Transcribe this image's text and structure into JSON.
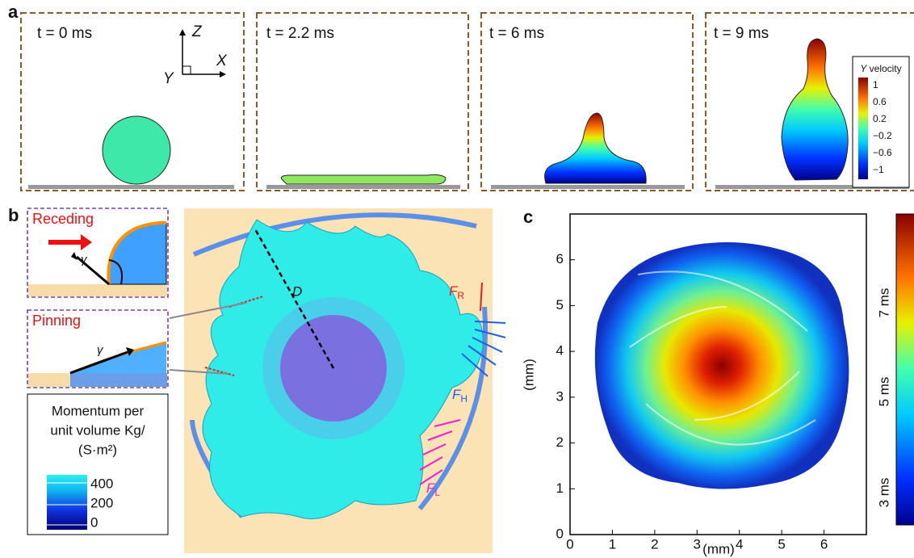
{
  "panel_a": {
    "label": "a",
    "frames": [
      "t = 0 ms",
      "t = 2.2 ms",
      "t = 6 ms",
      "t = 9 ms"
    ],
    "axes": {
      "z": "Z",
      "x": "X",
      "y": "Y"
    },
    "colorbar": {
      "title_symbol": "Y",
      "title_rest": "velocity",
      "ticks": [
        "1",
        "0.6",
        "0.2",
        "−0.2",
        "−0.6",
        "−1"
      ]
    }
  },
  "panel_b": {
    "label": "b",
    "insets": [
      {
        "title": "Receding",
        "angle": "γ"
      },
      {
        "title": "Pinning",
        "angle": "γ"
      }
    ],
    "legend": {
      "title_lines": [
        "Momentum per",
        "unit volume Kg/",
        "(S·m²)"
      ],
      "ticks": [
        "400",
        "200",
        "0"
      ]
    },
    "diameter": "D",
    "forces": [
      {
        "symbol": "F",
        "subscript": "R"
      },
      {
        "symbol": "F",
        "subscript": "H"
      },
      {
        "symbol": "F",
        "subscript": "L"
      }
    ]
  },
  "panel_c": {
    "label": "c",
    "xlabel": "(mm)",
    "ylabel": "(mm)",
    "xlim": [
      0,
      7
    ],
    "ylim": [
      0,
      7
    ],
    "xticks": [
      0,
      1,
      2,
      3,
      4,
      5,
      6
    ],
    "yticks": [
      0,
      1,
      2,
      3,
      4,
      5,
      6
    ],
    "colorbar_labels": [
      "7 ms",
      "5 ms",
      "3 ms"
    ]
  }
}
